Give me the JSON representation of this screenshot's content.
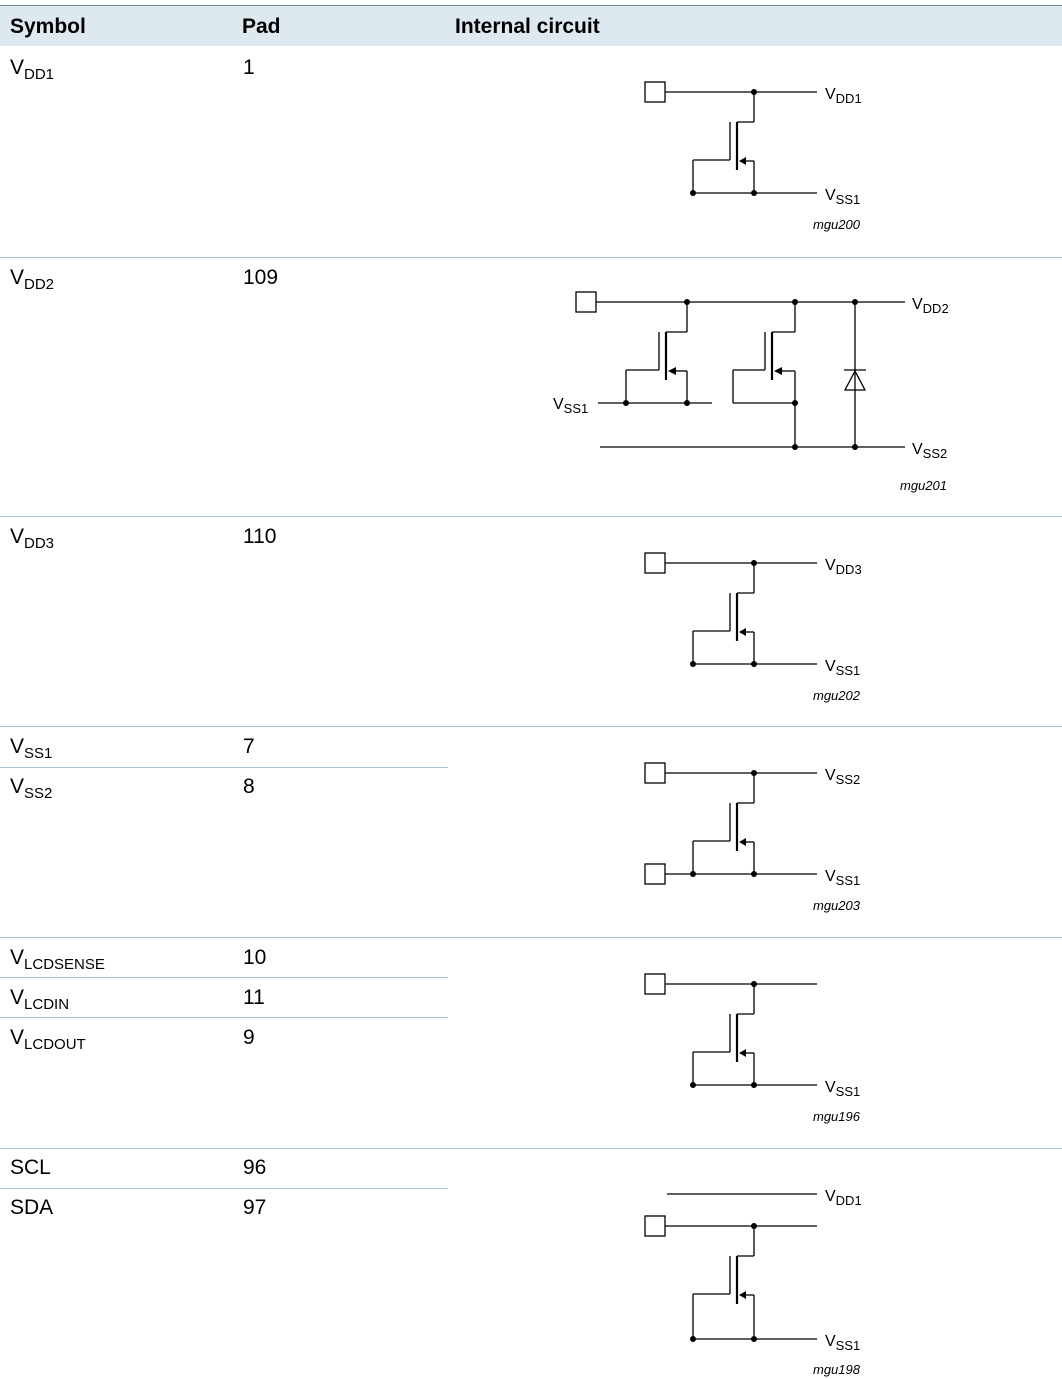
{
  "table": {
    "headers": {
      "symbol": "Symbol",
      "pad": "Pad",
      "circuit": "Internal circuit"
    },
    "rows": [
      {
        "symbol": {
          "base": "V",
          "sub": "DD1"
        },
        "pad": "1"
      },
      {
        "symbol": {
          "base": "V",
          "sub": "DD2"
        },
        "pad": "109"
      },
      {
        "symbol": {
          "base": "V",
          "sub": "DD3"
        },
        "pad": "110"
      },
      {
        "symbol": {
          "base": "V",
          "sub": "SS1"
        },
        "pad": "7"
      },
      {
        "symbol": {
          "base": "V",
          "sub": "SS2"
        },
        "pad": "8"
      },
      {
        "symbol": {
          "base": "V",
          "sub": "LCDSENSE"
        },
        "pad": "10"
      },
      {
        "symbol": {
          "base": "V",
          "sub": "LCDIN"
        },
        "pad": "11"
      },
      {
        "symbol": {
          "base": "V",
          "sub": "LCDOUT"
        },
        "pad": "9"
      },
      {
        "symbol": {
          "base": "SCL",
          "sub": ""
        },
        "pad": "96"
      },
      {
        "symbol": {
          "base": "SDA",
          "sub": ""
        },
        "pad": "97"
      }
    ],
    "circuits": [
      {
        "id": "mgu200",
        "labels": {
          "top": {
            "base": "V",
            "sub": "DD1"
          },
          "bottom": {
            "base": "V",
            "sub": "SS1"
          }
        }
      },
      {
        "id": "mgu201",
        "labels": {
          "top": {
            "base": "V",
            "sub": "DD2"
          },
          "left": {
            "base": "V",
            "sub": "SS1"
          },
          "bottom": {
            "base": "V",
            "sub": "SS2"
          }
        }
      },
      {
        "id": "mgu202",
        "labels": {
          "top": {
            "base": "V",
            "sub": "DD3"
          },
          "bottom": {
            "base": "V",
            "sub": "SS1"
          }
        }
      },
      {
        "id": "mgu203",
        "labels": {
          "top": {
            "base": "V",
            "sub": "SS2"
          },
          "bottom": {
            "base": "V",
            "sub": "SS1"
          }
        }
      },
      {
        "id": "mgu196",
        "labels": {
          "bottom": {
            "base": "V",
            "sub": "SS1"
          }
        }
      },
      {
        "id": "mgu198",
        "labels": {
          "top": {
            "base": "V",
            "sub": "DD1"
          },
          "bottom": {
            "base": "V",
            "sub": "SS1"
          }
        }
      }
    ]
  }
}
